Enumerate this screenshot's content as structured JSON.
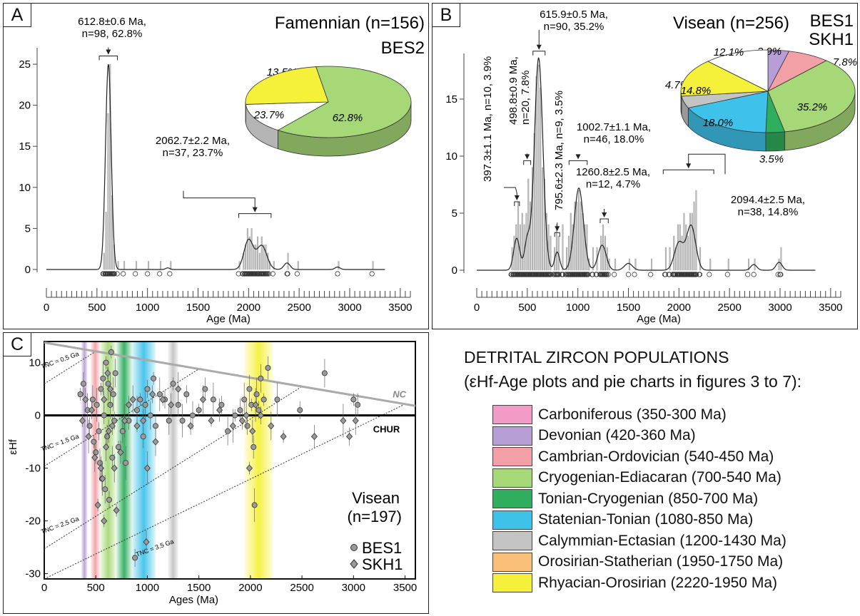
{
  "panels": {
    "a": {
      "label": "A",
      "title": "Famennian (n=156)",
      "sample": "BES2"
    },
    "b": {
      "label": "B",
      "title": "Visean (n=256)",
      "sample_line1": "BES1",
      "sample_line2": "SKH1"
    },
    "c": {
      "label": "C",
      "title_line1": "Visean",
      "title_line2": "(n=197)",
      "legend_bes1": "BES1",
      "legend_skh1": "SKH1",
      "nc_label": "NC",
      "chur_label": "CHUR"
    }
  },
  "legend": {
    "title": "DETRITAL ZIRCON POPULATIONS",
    "subtitle": "(εHf-Age plots and pie charts in figures 3 to 7):",
    "items": [
      {
        "label": "Carboniferous (350-300 Ma)",
        "color": "#f39bc7"
      },
      {
        "label": "Devonian (420-360 Ma)",
        "color": "#b89ed6"
      },
      {
        "label": "Cambrian-Ordovician (540-450 Ma)",
        "color": "#f2a0a6"
      },
      {
        "label": "Cryogenian-Ediacaran (700-540 Ma)",
        "color": "#a7d878"
      },
      {
        "label": "Tonian-Cryogenian (850-700 Ma)",
        "color": "#2fae5e"
      },
      {
        "label": "Statenian-Tonian (1080-850 Ma)",
        "color": "#3fc2ea"
      },
      {
        "label": "Calymmian-Ectasian (1200-1430 Ma)",
        "color": "#c4c4c4"
      },
      {
        "label": "Orosirian-Statherian (1950-1750 Ma)",
        "color": "#f7bf77"
      },
      {
        "label": "Rhyacian-Orosirian (2220-1950 Ma)",
        "color": "#f5f03a"
      }
    ]
  },
  "chart_data": [
    {
      "type": "bar",
      "panel": "A",
      "title": "Famennian (n=156)",
      "subtitle": "BES2",
      "xlabel": "Age (Ma)",
      "ylabel": "",
      "xlim": [
        0,
        3600
      ],
      "ylim": [
        0,
        27
      ],
      "xticks": [
        0,
        500,
        1000,
        1500,
        2000,
        2500,
        3000,
        3500
      ],
      "yticks": [
        0,
        5,
        10,
        15,
        20,
        25
      ],
      "histogram": {
        "bin_width": 20,
        "x": [
          560,
          580,
          600,
          620,
          640,
          660,
          700,
          760,
          880,
          1000,
          1120,
          1220,
          1900,
          1940,
          1960,
          1980,
          2000,
          2020,
          2040,
          2060,
          2080,
          2100,
          2120,
          2140,
          2160,
          2180,
          2200,
          2240,
          2380,
          2480,
          2880,
          3220
        ],
        "counts": [
          2,
          7,
          19,
          25,
          9,
          3,
          1,
          1,
          1,
          1,
          1,
          1,
          1,
          2,
          3,
          5,
          4,
          5,
          3,
          3,
          4,
          2,
          4,
          3,
          3,
          2,
          1,
          1,
          2,
          1,
          1,
          1
        ]
      },
      "kde_peaks": [
        {
          "text_line1": "612.8±0.6 Ma,",
          "text_line2": "n=98, 62.8%",
          "x": 612.8,
          "y": 25.2
        },
        {
          "text_line1": "2062.7±2.2 Ma,",
          "text_line2": "n=37, 23.7%",
          "x": 2062.7,
          "y": 4.1
        }
      ],
      "pie": [
        {
          "label": "62.8%",
          "value": 62.8,
          "color": "#a7d878"
        },
        {
          "label": "13.5%",
          "value": 13.5,
          "color": "#ffffff"
        },
        {
          "label": "23.7%",
          "value": 23.7,
          "color": "#f5f03a"
        }
      ]
    },
    {
      "type": "bar",
      "panel": "B",
      "title": "Visean (n=256)",
      "subtitle": "BES1 SKH1",
      "xlabel": "Age (Ma)",
      "ylabel": "",
      "xlim": [
        0,
        3600
      ],
      "ylim": [
        0,
        19
      ],
      "xticks": [
        0,
        500,
        1000,
        1500,
        2000,
        2500,
        3000,
        3500
      ],
      "yticks": [
        0,
        5,
        10,
        15
      ],
      "histogram": {
        "bin_width": 20,
        "x": [
          340,
          360,
          380,
          400,
          420,
          440,
          460,
          480,
          500,
          520,
          540,
          560,
          580,
          600,
          620,
          640,
          660,
          680,
          700,
          720,
          760,
          780,
          800,
          840,
          880,
          900,
          920,
          940,
          960,
          980,
          1000,
          1020,
          1040,
          1060,
          1080,
          1100,
          1140,
          1180,
          1220,
          1240,
          1260,
          1280,
          1300,
          1360,
          1500,
          1560,
          1720,
          1860,
          1900,
          1940,
          1960,
          1980,
          2000,
          2020,
          2040,
          2060,
          2080,
          2100,
          2120,
          2140,
          2160,
          2200,
          2300,
          2480,
          2680,
          2740,
          2980,
          3000
        ],
        "counts": [
          2,
          3,
          4,
          6,
          4,
          5,
          4,
          5,
          8,
          6,
          9,
          12,
          17,
          18,
          16,
          9,
          8,
          5,
          4,
          3,
          2,
          4,
          3,
          4,
          2,
          3,
          5,
          4,
          6,
          6,
          7,
          6,
          5,
          4,
          4,
          1,
          2,
          2,
          3,
          4,
          3,
          2,
          1,
          1,
          1,
          1,
          1,
          2,
          2,
          3,
          2,
          4,
          4,
          3,
          5,
          4,
          3,
          5,
          5,
          6,
          7,
          2,
          1,
          1,
          1,
          1,
          1,
          2
        ]
      },
      "kde_peaks": [
        {
          "text_line1": "397.3±1.1 Ma, n=10, 3.9%",
          "x": 397.3,
          "y": 3.3
        },
        {
          "text_line1": "498.8±0.9 Ma,",
          "text_line2": "n=20, 7.8%",
          "x": 498.8,
          "y": 4.0
        },
        {
          "text_line1": "615.9±0.5 Ma,",
          "text_line2": "n=90, 35.2%",
          "x": 615.9,
          "y": 18.8
        },
        {
          "text_line1": "795.6±2.3 Ma, n=9, 3.5%",
          "x": 795.6,
          "y": 3.3
        },
        {
          "text_line1": "1002.7±1.1 Ma,",
          "text_line2": "n=46, 18.0%",
          "x": 1002.7,
          "y": 7.5
        },
        {
          "text_line1": "1260.8±2.5 Ma,",
          "text_line2": "n=12, 4.7%",
          "x": 1260.8,
          "y": 2.6
        },
        {
          "text_line1": "2094.4±2.5 Ma,",
          "text_line2": "n=38, 14.8%",
          "x": 2094.4,
          "y": 4.2
        }
      ],
      "pie": [
        {
          "label": "3.9%",
          "value": 3.9,
          "color": "#b89ed6"
        },
        {
          "label": "7.8%",
          "value": 7.8,
          "color": "#f2a0a6"
        },
        {
          "label": "35.2%",
          "value": 35.2,
          "color": "#a7d878"
        },
        {
          "label": "3.5%",
          "value": 3.5,
          "color": "#2fae5e"
        },
        {
          "label": "18.0%",
          "value": 18.0,
          "color": "#3fc2ea"
        },
        {
          "label": "4.7%",
          "value": 4.7,
          "color": "#c4c4c4"
        },
        {
          "label": "14.8%",
          "value": 14.8,
          "color": "#f5f03a"
        },
        {
          "label": "12.1%",
          "value": 12.1,
          "color": "#ffffff"
        }
      ]
    },
    {
      "type": "scatter",
      "panel": "C",
      "title": "Visean (n=197)",
      "xlabel": "Ages (Ma)",
      "ylabel": "εHf",
      "xlim": [
        0,
        3600
      ],
      "ylim": [
        -31,
        14
      ],
      "xticks": [
        0,
        500,
        1000,
        1500,
        2000,
        2500,
        3000,
        3500
      ],
      "yticks": [
        -30,
        -20,
        -10,
        0,
        10
      ],
      "xtick_labels": [
        "0",
        "500",
        "1000",
        "1500",
        "2000",
        "2500",
        "3000",
        "3500"
      ],
      "bands": [
        {
          "from": 360,
          "to": 420,
          "color": "#b89ed6"
        },
        {
          "from": 450,
          "to": 540,
          "color": "#f2a0a6"
        },
        {
          "from": 540,
          "to": 700,
          "color": "#a7d878"
        },
        {
          "from": 700,
          "to": 850,
          "color": "#2fae5e"
        },
        {
          "from": 850,
          "to": 1080,
          "color": "#3fc2ea"
        },
        {
          "from": 1200,
          "to": 1300,
          "color": "#c4c4c4"
        },
        {
          "from": 1940,
          "to": 2220,
          "color": "#f5f03a"
        }
      ],
      "nc_line": {
        "x": [
          0,
          3600
        ],
        "y": [
          13.8,
          1.8
        ]
      },
      "tnc_lines": [
        {
          "label": "TNC = 0.5 Ga",
          "tnc": 500
        },
        {
          "label": "TNC = 1.5 Ga",
          "tnc": 1500
        },
        {
          "label": "TNC = 2.5 Ga",
          "tnc": 2500
        },
        {
          "label": "TNC = 3.5 Ga",
          "tnc": 3500
        }
      ],
      "tnc_slope": 0.0123,
      "tnc_intercept_at_nc": 12.2,
      "series": [
        {
          "name": "BES1",
          "marker": "circle",
          "points": [
            [
              350,
              4
            ],
            [
              380,
              6
            ],
            [
              420,
              1
            ],
            [
              440,
              -2
            ],
            [
              470,
              3
            ],
            [
              480,
              -5
            ],
            [
              500,
              -7
            ],
            [
              510,
              2
            ],
            [
              530,
              -3
            ],
            [
              540,
              -9
            ],
            [
              550,
              5
            ],
            [
              560,
              -12
            ],
            [
              570,
              7
            ],
            [
              580,
              0
            ],
            [
              590,
              -14
            ],
            [
              600,
              10
            ],
            [
              610,
              -4
            ],
            [
              620,
              6
            ],
            [
              630,
              -16
            ],
            [
              640,
              2
            ],
            [
              650,
              12
            ],
            [
              660,
              -8
            ],
            [
              670,
              4
            ],
            [
              680,
              -1
            ],
            [
              690,
              8
            ],
            [
              720,
              -6
            ],
            [
              760,
              -3
            ],
            [
              790,
              -9
            ],
            [
              820,
              -1
            ],
            [
              900,
              1
            ],
            [
              930,
              3
            ],
            [
              960,
              -4
            ],
            [
              980,
              2
            ],
            [
              1000,
              5
            ],
            [
              1030,
              0
            ],
            [
              1060,
              7
            ],
            [
              1080,
              -2
            ],
            [
              1120,
              4
            ],
            [
              1170,
              3
            ],
            [
              1210,
              -1
            ],
            [
              1250,
              6
            ],
            [
              1300,
              2
            ],
            [
              1340,
              -1
            ],
            [
              1380,
              4
            ],
            [
              1440,
              0
            ],
            [
              1500,
              1
            ],
            [
              1560,
              5
            ],
            [
              1640,
              3
            ],
            [
              1720,
              2
            ],
            [
              1780,
              -3
            ],
            [
              1850,
              0
            ],
            [
              1900,
              1
            ],
            [
              1940,
              3
            ],
            [
              1970,
              -2
            ],
            [
              1990,
              5
            ],
            [
              2010,
              2
            ],
            [
              2030,
              -6
            ],
            [
              2060,
              4
            ],
            [
              2080,
              1
            ],
            [
              2100,
              7
            ],
            [
              2130,
              3
            ],
            [
              2170,
              9
            ],
            [
              2260,
              3
            ],
            [
              2480,
              1
            ],
            [
              2720,
              8
            ],
            [
              3000,
              3
            ],
            [
              3040,
              2
            ],
            [
              2040,
              -17
            ],
            [
              880,
              -27
            ]
          ]
        },
        {
          "name": "SKH1",
          "marker": "diamond",
          "points": [
            [
              370,
              -1
            ],
            [
              400,
              3
            ],
            [
              430,
              -4
            ],
            [
              460,
              1
            ],
            [
              490,
              -8
            ],
            [
              520,
              -17
            ],
            [
              550,
              -10
            ],
            [
              565,
              -12
            ],
            [
              580,
              3
            ],
            [
              600,
              -6
            ],
            [
              615,
              8
            ],
            [
              625,
              -3
            ],
            [
              640,
              5
            ],
            [
              660,
              -2
            ],
            [
              680,
              -10
            ],
            [
              700,
              -18
            ],
            [
              740,
              -7
            ],
            [
              780,
              -1
            ],
            [
              820,
              2
            ],
            [
              860,
              3
            ],
            [
              900,
              -2
            ],
            [
              960,
              -1
            ],
            [
              1000,
              -10
            ],
            [
              1050,
              4
            ],
            [
              1080,
              -5
            ],
            [
              1150,
              3
            ],
            [
              1230,
              2
            ],
            [
              1300,
              5
            ],
            [
              1420,
              -2
            ],
            [
              1540,
              3
            ],
            [
              1620,
              -1
            ],
            [
              1700,
              1
            ],
            [
              1830,
              -2
            ],
            [
              1920,
              -1
            ],
            [
              1960,
              0
            ],
            [
              1990,
              -10
            ],
            [
              2020,
              -3
            ],
            [
              2050,
              2
            ],
            [
              2100,
              0
            ],
            [
              2200,
              -2
            ],
            [
              2320,
              -4
            ],
            [
              2620,
              -4
            ],
            [
              2900,
              -1
            ],
            [
              2960,
              -4
            ],
            [
              3020,
              -1
            ],
            [
              580,
              -20
            ],
            [
              990,
              -24
            ]
          ]
        }
      ]
    }
  ]
}
